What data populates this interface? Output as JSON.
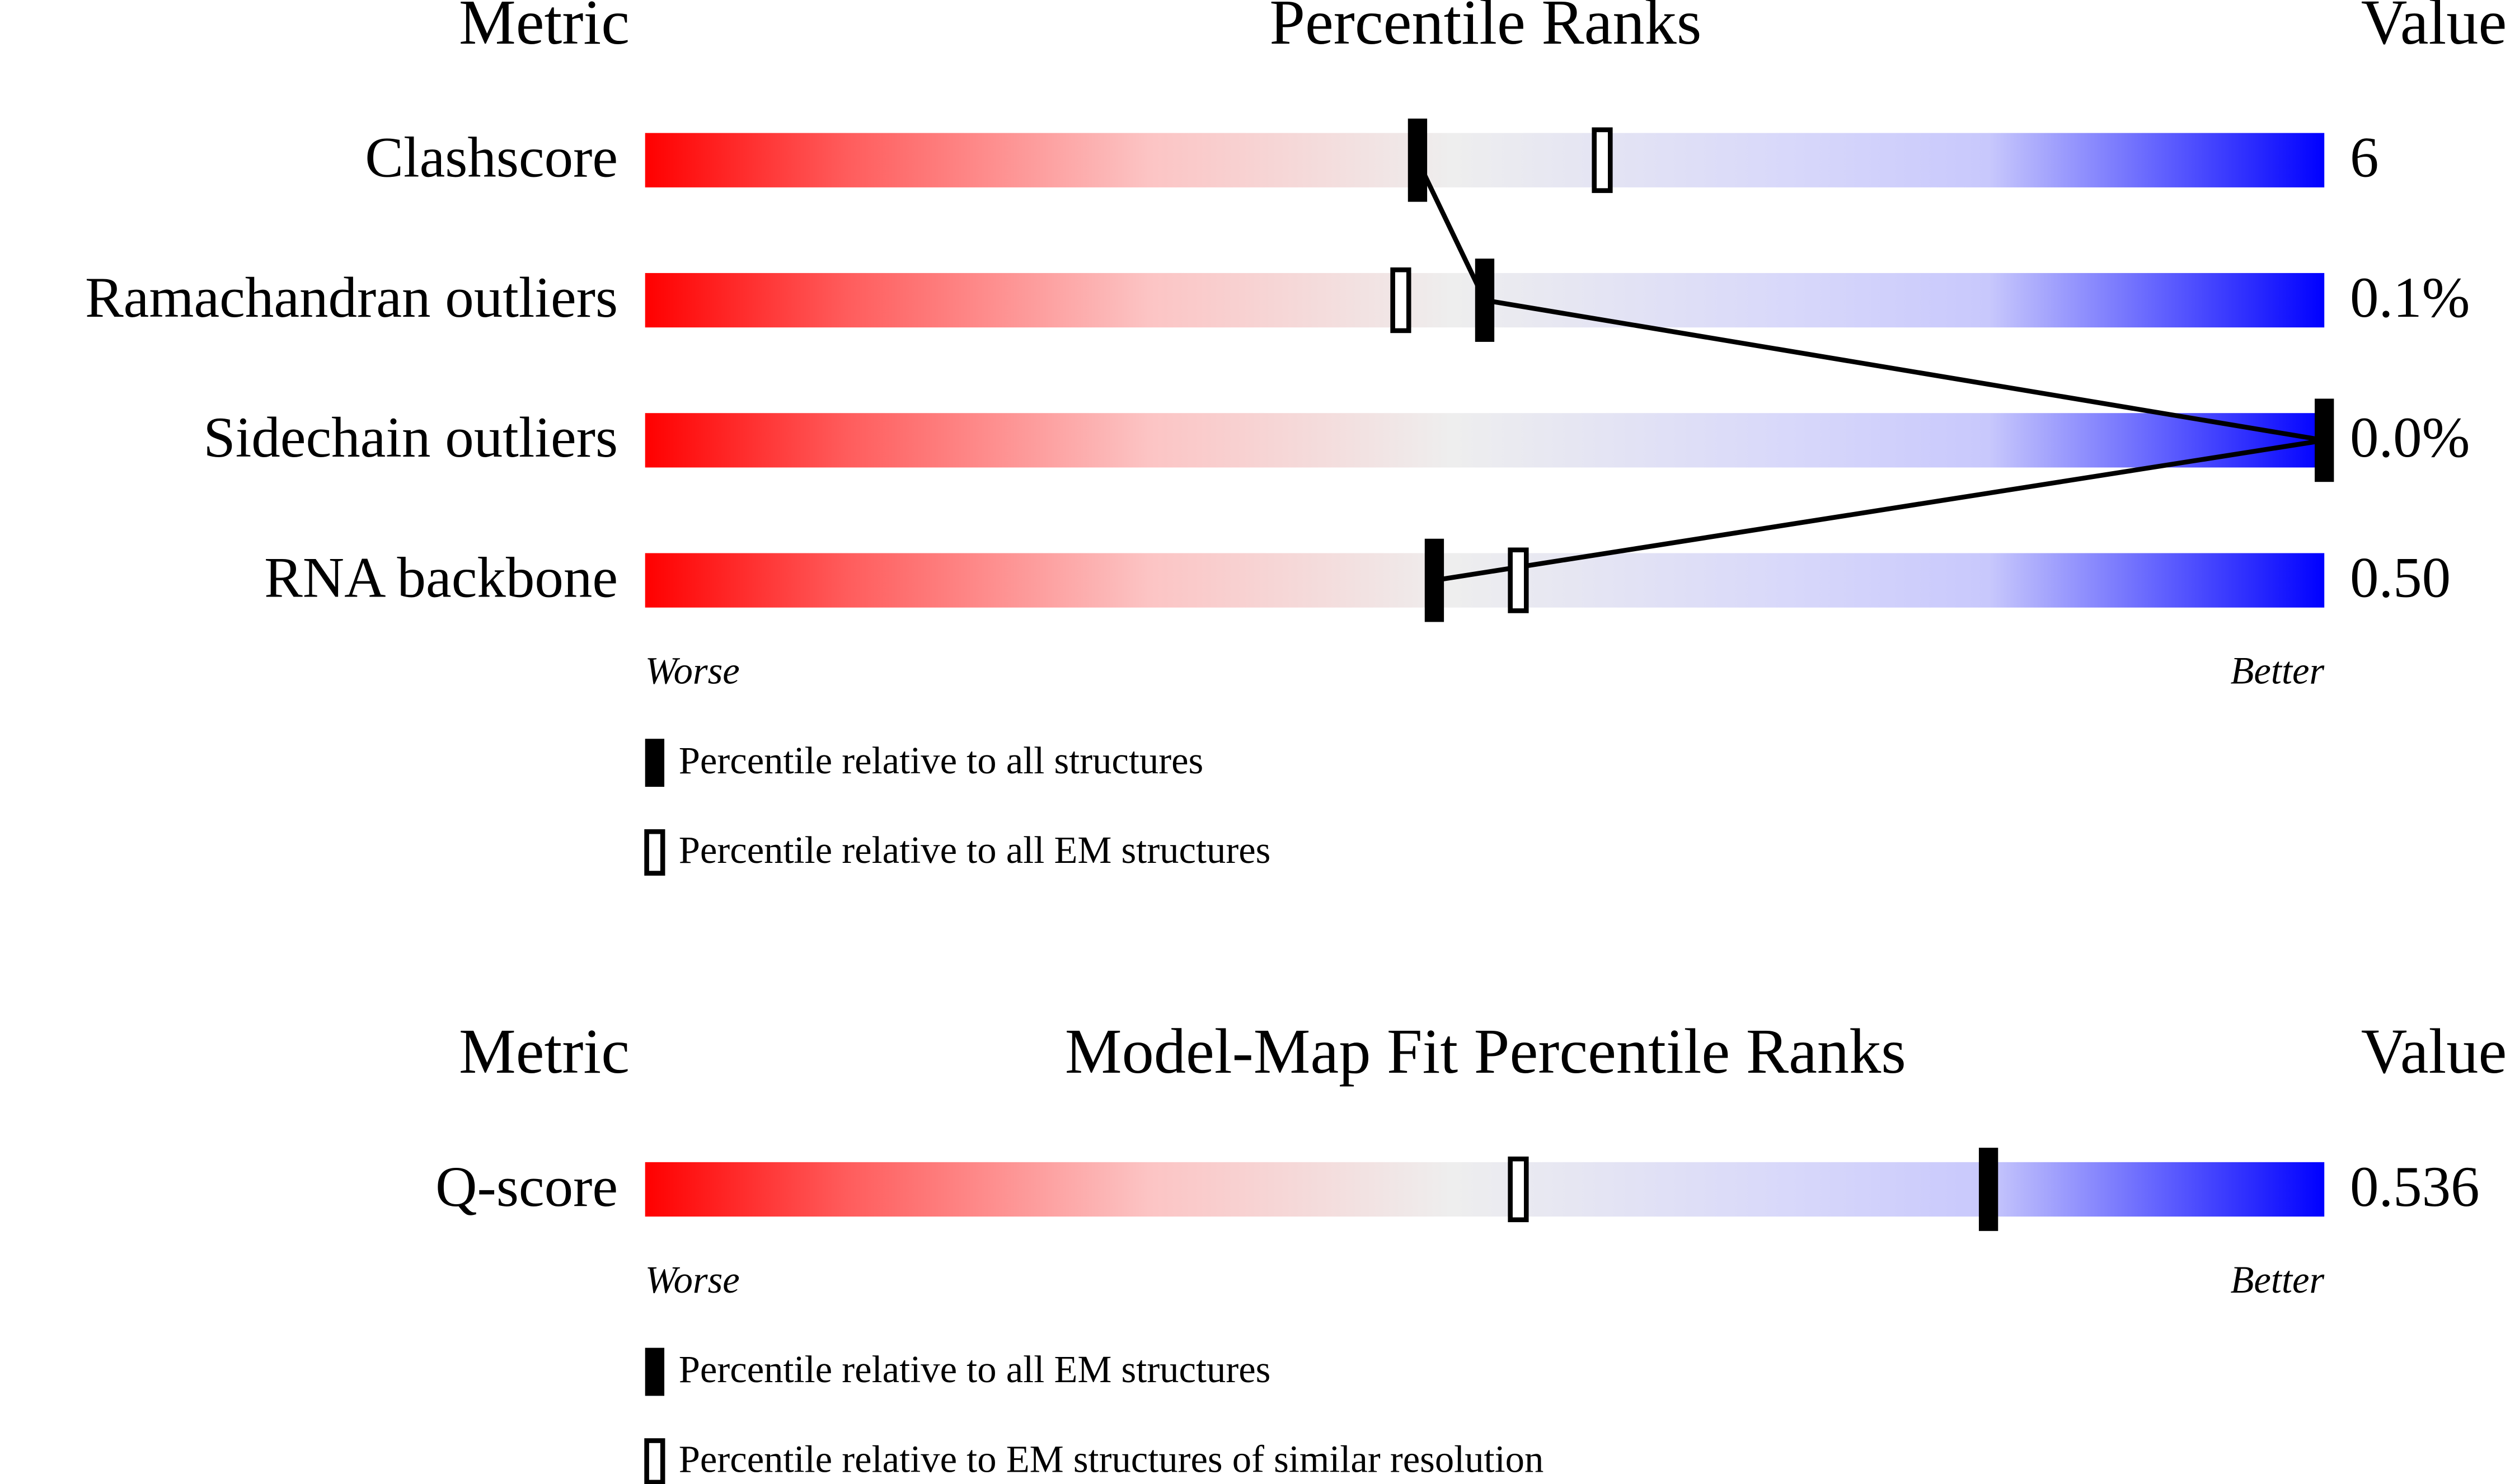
{
  "chart_data": [
    {
      "type": "percentile-slider",
      "metric_header": "Metric",
      "title": "Percentile Ranks",
      "value_header": "Value",
      "xlim": [
        0,
        100
      ],
      "worse_label": "Worse",
      "better_label": "Better",
      "categories": [
        "Clashscore",
        "Ramachandran outliers",
        "Sidechain outliers",
        "RNA backbone"
      ],
      "metric_values": [
        "6",
        "0.1%",
        "0.0%",
        "0.50"
      ],
      "series": [
        {
          "name": "Percentile relative to all structures",
          "color": "#000000",
          "connected": true,
          "values": [
            46,
            50,
            100,
            47
          ]
        },
        {
          "name": "Percentile relative to all EM structures",
          "color": "#ffffff",
          "connected": false,
          "values": [
            57,
            45,
            null,
            52
          ]
        }
      ]
    },
    {
      "type": "percentile-slider",
      "metric_header": "Metric",
      "title": "Model-Map Fit Percentile Ranks",
      "value_header": "Value",
      "xlim": [
        0,
        100
      ],
      "worse_label": "Worse",
      "better_label": "Better",
      "categories": [
        "Q-score"
      ],
      "metric_values": [
        "0.536"
      ],
      "series": [
        {
          "name": "Percentile relative to all EM structures",
          "color": "#000000",
          "connected": false,
          "values": [
            80
          ]
        },
        {
          "name": "Percentile relative to EM structures of similar resolution",
          "color": "#ffffff",
          "connected": false,
          "values": [
            52
          ]
        }
      ]
    }
  ]
}
